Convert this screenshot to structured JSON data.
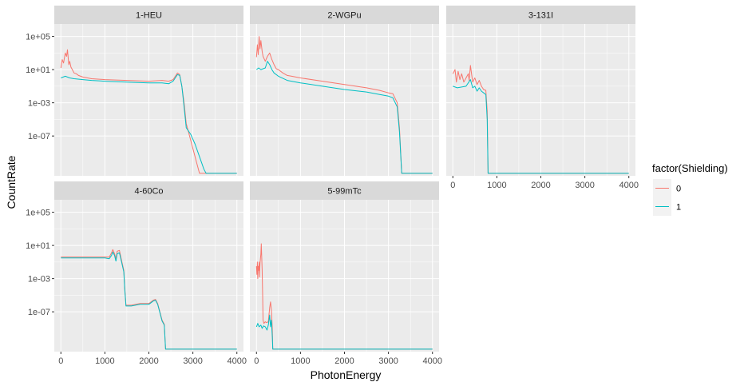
{
  "chart_data": {
    "type": "line",
    "xlabel": "PhotonEnergy",
    "ylabel": "CountRate",
    "y_scale": "log10",
    "xlim": [
      -150,
      4150
    ],
    "ylim_log10": [
      -11.8,
      6.5
    ],
    "x_ticks": [
      0,
      1000,
      2000,
      3000,
      4000
    ],
    "x_tick_labels": [
      "0",
      "1000",
      "2000",
      "3000",
      "4000"
    ],
    "y_ticks_log10": [
      5,
      1,
      -3,
      -7
    ],
    "y_tick_labels": [
      "1e+05",
      "1e+01",
      "1e-03",
      "1e-07"
    ],
    "grid": true,
    "legend": {
      "title": "factor(Shielding)",
      "position": "right",
      "entries": [
        {
          "label": "0",
          "color": "#F8766D"
        },
        {
          "label": "1",
          "color": "#00BFC4"
        }
      ]
    },
    "panels": [
      {
        "label": "1-HEU",
        "series": [
          {
            "name": "0",
            "color": "#F8766D",
            "x": [
              0,
              30,
              60,
              100,
              130,
              150,
              180,
              200,
              230,
              260,
              300,
              350,
              400,
              500,
              700,
              1000,
              1500,
              2000,
              2300,
              2450,
              2550,
              2650,
              2700,
              2750,
              2800,
              2850,
              2900,
              3000,
              3100,
              3150,
              3200,
              4000
            ],
            "y": [
              1.2,
              2.2,
              1.8,
              3.0,
              2.6,
              3.4,
              1.6,
              2.0,
              1.3,
              1.0,
              0.6,
              0.5,
              0.3,
              0.1,
              -0.1,
              -0.2,
              -0.3,
              -0.4,
              -0.3,
              -0.4,
              -0.2,
              0.6,
              0.4,
              -1.0,
              -3.0,
              -5.5,
              -6.5,
              -8.5,
              -10.5,
              -11.5,
              -11.5,
              -11.5
            ]
          },
          {
            "name": "1",
            "color": "#00BFC4",
            "x": [
              0,
              100,
              200,
              300,
              500,
              700,
              1000,
              1500,
              2000,
              2300,
              2450,
              2550,
              2650,
              2700,
              2750,
              2800,
              2850,
              2950,
              3050,
              3150,
              3250,
              3300,
              4000
            ],
            "y": [
              0.0,
              0.2,
              0.0,
              -0.1,
              -0.2,
              -0.3,
              -0.4,
              -0.5,
              -0.6,
              -0.6,
              -0.7,
              -0.4,
              0.4,
              0.3,
              -1.0,
              -3.5,
              -6.0,
              -6.8,
              -8.0,
              -9.5,
              -11.0,
              -11.5,
              -11.5
            ]
          }
        ]
      },
      {
        "label": "2-WGPu",
        "series": [
          {
            "name": "0",
            "color": "#F8766D",
            "x": [
              0,
              20,
              40,
              60,
              80,
              100,
              130,
              150,
              200,
              250,
              300,
              350,
              400,
              450,
              500,
              600,
              700,
              800,
              1000,
              1500,
              2000,
              2500,
              2800,
              3000,
              3100,
              3200,
              3250,
              3300,
              4000
            ],
            "y": [
              2.5,
              4.0,
              2.8,
              5.0,
              3.5,
              4.5,
              3.2,
              2.6,
              2.0,
              2.6,
              3.0,
              2.2,
              1.6,
              1.1,
              1.0,
              0.6,
              0.3,
              0.2,
              0.0,
              -0.4,
              -0.8,
              -1.2,
              -1.5,
              -1.8,
              -1.9,
              -3.0,
              -6.0,
              -11.5,
              -11.5
            ]
          },
          {
            "name": "1",
            "color": "#00BFC4",
            "x": [
              0,
              50,
              100,
              200,
              250,
              300,
              350,
              400,
              500,
              700,
              1000,
              1500,
              2000,
              2500,
              2800,
              3000,
              3100,
              3200,
              3250,
              3300,
              4000
            ],
            "y": [
              1.0,
              1.2,
              1.0,
              1.2,
              2.0,
              1.6,
              1.0,
              0.6,
              0.2,
              -0.3,
              -0.6,
              -1.0,
              -1.4,
              -1.7,
              -2.0,
              -2.2,
              -2.4,
              -3.5,
              -6.5,
              -11.5,
              -11.5
            ]
          }
        ]
      },
      {
        "label": "3-131I",
        "series": [
          {
            "name": "0",
            "color": "#F8766D",
            "x": [
              0,
              50,
              80,
              120,
              160,
              200,
              250,
              300,
              350,
              370,
              400,
              450,
              500,
              550,
              600,
              650,
              700,
              750,
              780,
              800,
              4000
            ],
            "y": [
              0.5,
              1.0,
              -0.5,
              0.8,
              -0.2,
              0.5,
              -0.5,
              0.0,
              0.5,
              -0.3,
              1.5,
              -0.5,
              0.0,
              -0.8,
              -0.3,
              -1.0,
              -1.4,
              -1.5,
              -4.0,
              -11.5,
              -11.5
            ]
          },
          {
            "name": "1",
            "color": "#00BFC4",
            "x": [
              0,
              100,
              200,
              300,
              350,
              400,
              450,
              500,
              550,
              600,
              650,
              700,
              750,
              780,
              800,
              4000
            ],
            "y": [
              -1.0,
              -1.2,
              -1.1,
              -1.0,
              -0.6,
              -0.2,
              -1.2,
              -1.0,
              -1.6,
              -1.2,
              -1.6,
              -1.8,
              -2.0,
              -5.0,
              -11.5,
              -11.5
            ]
          }
        ]
      },
      {
        "label": "4-60Co",
        "series": [
          {
            "name": "0",
            "color": "#F8766D",
            "x": [
              0,
              200,
              500,
              800,
              1000,
              1100,
              1150,
              1180,
              1220,
              1250,
              1280,
              1330,
              1380,
              1430,
              1450,
              1480,
              1500,
              1600,
              1800,
              2000,
              2100,
              2150,
              2200,
              2250,
              2300,
              2350,
              2380,
              2400,
              4000
            ],
            "y": [
              -0.4,
              -0.4,
              -0.4,
              -0.4,
              -0.4,
              -0.4,
              0.1,
              0.5,
              0.0,
              -0.6,
              0.3,
              0.4,
              -0.8,
              -2.0,
              -4.0,
              -6.2,
              -6.2,
              -6.2,
              -6.0,
              -6.0,
              -5.6,
              -5.5,
              -6.0,
              -7.0,
              -8.0,
              -8.5,
              -11.5,
              -11.5,
              -11.5
            ]
          },
          {
            "name": "1",
            "color": "#00BFC4",
            "x": [
              0,
              200,
              500,
              800,
              1000,
              1100,
              1150,
              1180,
              1220,
              1250,
              1280,
              1330,
              1380,
              1430,
              1450,
              1480,
              1500,
              1600,
              1800,
              2000,
              2100,
              2150,
              2200,
              2250,
              2300,
              2350,
              2380,
              2400,
              4000
            ],
            "y": [
              -0.5,
              -0.5,
              -0.5,
              -0.5,
              -0.5,
              -0.6,
              -0.2,
              0.2,
              -0.2,
              -0.9,
              0.0,
              0.1,
              -1.0,
              -2.2,
              -4.2,
              -6.3,
              -6.3,
              -6.3,
              -6.1,
              -6.1,
              -5.7,
              -5.6,
              -6.1,
              -7.1,
              -8.1,
              -8.6,
              -11.5,
              -11.5,
              -11.5
            ]
          }
        ]
      },
      {
        "label": "5-99mTc",
        "series": [
          {
            "name": "0",
            "color": "#F8766D",
            "x": [
              0,
              10,
              20,
              30,
              40,
              50,
              60,
              70,
              80,
              100,
              110,
              130,
              140,
              150,
              170,
              200,
              230,
              270,
              300,
              320,
              340,
              360,
              370,
              4000
            ],
            "y": [
              -1.5,
              -2.5,
              -1.0,
              -3.0,
              -1.5,
              -2.0,
              -1.0,
              -2.8,
              -1.2,
              0.0,
              1.2,
              -2.0,
              -5.0,
              -8.0,
              -8.4,
              -8.2,
              -8.3,
              -8.2,
              -6.5,
              -5.8,
              -6.8,
              -9.0,
              -11.5,
              -11.5
            ]
          },
          {
            "name": "1",
            "color": "#00BFC4",
            "x": [
              0,
              30,
              60,
              100,
              130,
              160,
              200,
              240,
              270,
              300,
              320,
              340,
              360,
              370,
              4000
            ],
            "y": [
              -8.8,
              -8.4,
              -8.8,
              -8.6,
              -9.0,
              -8.7,
              -8.8,
              -9.2,
              -8.6,
              -7.4,
              -8.8,
              -8.0,
              -10.0,
              -11.5,
              -11.5
            ]
          }
        ]
      }
    ]
  }
}
